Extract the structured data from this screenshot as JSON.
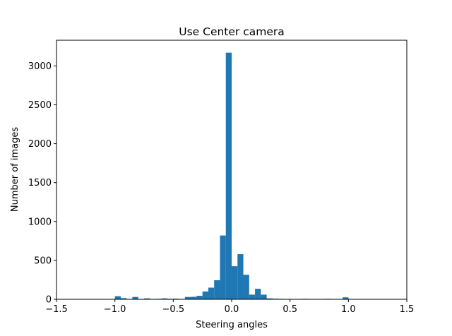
{
  "chart_data": {
    "type": "bar",
    "title": "Use Center camera",
    "xlabel": "Steering angles",
    "ylabel": "Number of images",
    "xlim": [
      -1.5,
      1.5
    ],
    "ylim": [
      0,
      3330
    ],
    "xticks": [
      -1.5,
      -1.0,
      -0.5,
      0.0,
      0.5,
      1.0,
      1.5
    ],
    "xtick_labels": [
      "−1.5",
      "−1.0",
      "−0.5",
      "0.0",
      "0.5",
      "1.0",
      "1.5"
    ],
    "yticks": [
      0,
      500,
      1000,
      1500,
      2000,
      2500,
      3000
    ],
    "ytick_labels": [
      "0",
      "500",
      "1000",
      "1500",
      "2000",
      "2500",
      "3000"
    ],
    "bin_width": 0.05,
    "bar_color": "#1f77b4",
    "grid": false,
    "bins": [
      {
        "x": -1.0,
        "count": 40
      },
      {
        "x": -0.95,
        "count": 15
      },
      {
        "x": -0.9,
        "count": 5
      },
      {
        "x": -0.85,
        "count": 30
      },
      {
        "x": -0.8,
        "count": 5
      },
      {
        "x": -0.75,
        "count": 12
      },
      {
        "x": -0.65,
        "count": 6
      },
      {
        "x": -0.6,
        "count": 12
      },
      {
        "x": -0.55,
        "count": 6
      },
      {
        "x": -0.5,
        "count": 8
      },
      {
        "x": -0.45,
        "count": 4
      },
      {
        "x": -0.4,
        "count": 30
      },
      {
        "x": -0.35,
        "count": 32
      },
      {
        "x": -0.3,
        "count": 45
      },
      {
        "x": -0.25,
        "count": 100
      },
      {
        "x": -0.2,
        "count": 150
      },
      {
        "x": -0.15,
        "count": 245
      },
      {
        "x": -0.1,
        "count": 820
      },
      {
        "x": -0.05,
        "count": 3170
      },
      {
        "x": 0.0,
        "count": 425
      },
      {
        "x": 0.05,
        "count": 580
      },
      {
        "x": 0.1,
        "count": 315
      },
      {
        "x": 0.15,
        "count": 60
      },
      {
        "x": 0.2,
        "count": 135
      },
      {
        "x": 0.25,
        "count": 60
      },
      {
        "x": 0.3,
        "count": 12
      },
      {
        "x": 0.35,
        "count": 8
      },
      {
        "x": 0.4,
        "count": 6
      },
      {
        "x": 0.55,
        "count": 5
      },
      {
        "x": 0.6,
        "count": 6
      },
      {
        "x": 0.65,
        "count": 5
      },
      {
        "x": 0.75,
        "count": 5
      },
      {
        "x": 0.8,
        "count": 6
      },
      {
        "x": 0.85,
        "count": 4
      },
      {
        "x": 0.95,
        "count": 25
      }
    ]
  }
}
